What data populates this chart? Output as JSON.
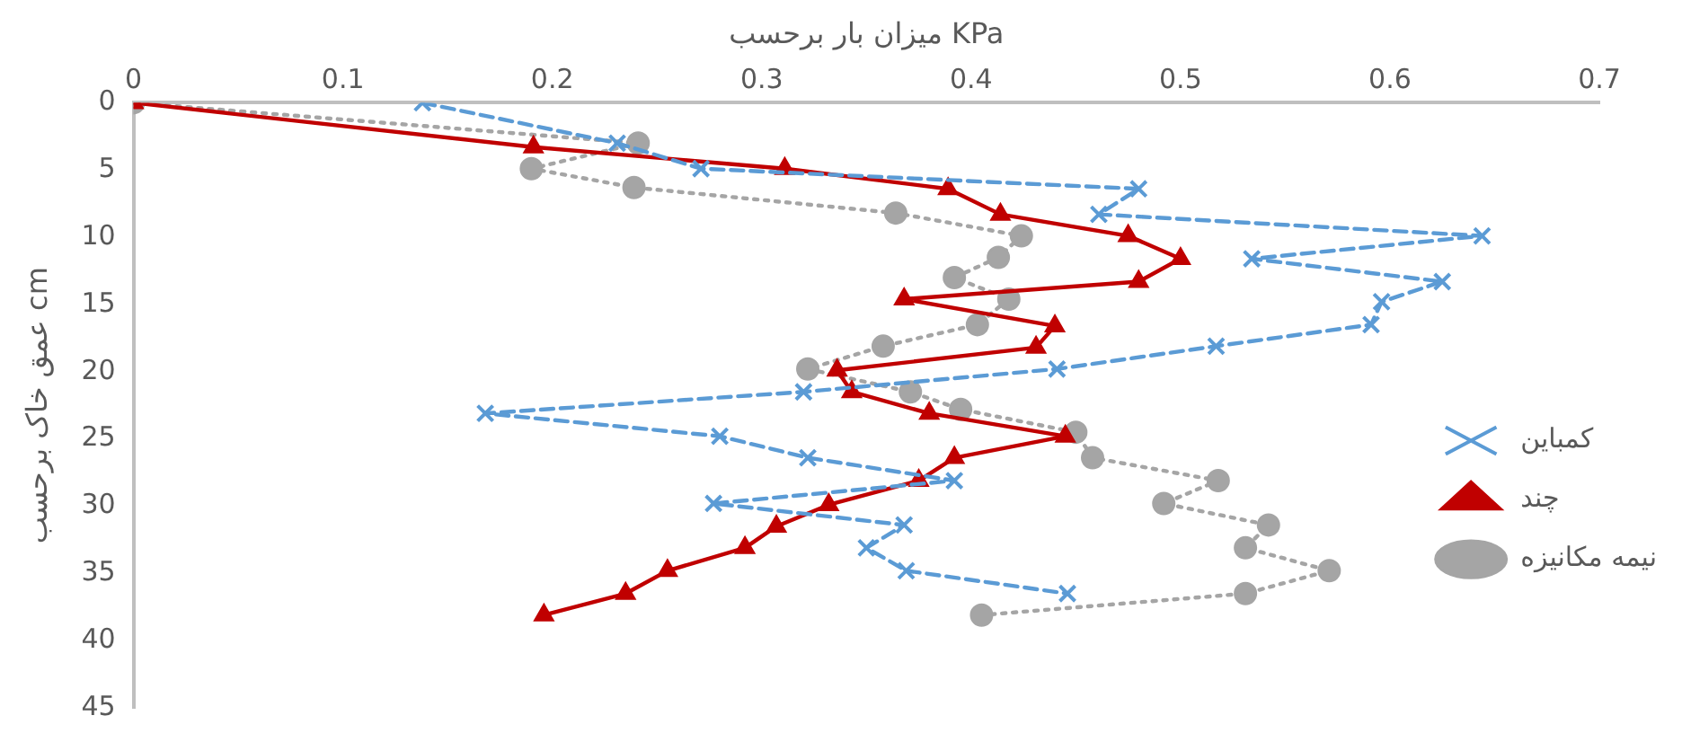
{
  "chart_data": {
    "type": "line",
    "xlabel": "میزان بار برحسب KPa",
    "ylabel": "عمق خاک برحسب cm",
    "xlim": [
      0,
      0.7
    ],
    "xticks": [
      0,
      0.1,
      0.2,
      0.3,
      0.4,
      0.5,
      0.6,
      0.7
    ],
    "ylim": [
      45,
      0
    ],
    "yticks": [
      0,
      5,
      10,
      15,
      20,
      25,
      30,
      35,
      40,
      45
    ],
    "grid": false,
    "legend": "right",
    "series": [
      {
        "name": "نیمه مکانیزه",
        "color": "#a5a5a5",
        "marker": "circle",
        "line_style": "dotted",
        "x": [
          0,
          0.241,
          0.19,
          0.239,
          0.364,
          0.424,
          0.413,
          0.392,
          0.418,
          0.403,
          0.358,
          0.322,
          0.371,
          0.395,
          0.45,
          0.458,
          0.518,
          0.492,
          0.542,
          0.531,
          0.571,
          0.531,
          0.405
        ],
        "values": [
          0,
          3,
          4.9,
          6.3,
          8.2,
          9.9,
          11.5,
          13,
          14.6,
          16.5,
          18.1,
          19.8,
          21.5,
          22.8,
          24.5,
          26.4,
          28.1,
          29.8,
          31.4,
          33.1,
          34.8,
          36.5,
          38.1
        ]
      },
      {
        "name": "چند",
        "color": "#c00000",
        "marker": "triangle",
        "line_style": "solid",
        "x": [
          0,
          0.191,
          0.311,
          0.389,
          0.414,
          0.475,
          0.5,
          0.48,
          0.368,
          0.44,
          0.431,
          0.336,
          0.343,
          0.38,
          0.445,
          0.392,
          0.375,
          0.332,
          0.307,
          0.292,
          0.255,
          0.235,
          0.196
        ],
        "values": [
          0,
          3.3,
          4.9,
          6.4,
          8.3,
          9.9,
          11.6,
          13.3,
          14.6,
          16.6,
          18.2,
          19.9,
          21.5,
          23.1,
          24.8,
          26.4,
          28.1,
          29.9,
          31.5,
          33.1,
          34.8,
          36.5,
          38.1
        ]
      },
      {
        "name": "کمباین",
        "color": "#5b9bd5",
        "marker": "cross",
        "line_style": "dashed",
        "x": [
          0.138,
          0.231,
          0.271,
          0.48,
          0.461,
          0.644,
          0.534,
          0.625,
          0.596,
          0.591,
          0.517,
          0.441,
          0.32,
          0.168,
          0.28,
          0.322,
          0.392,
          0.277,
          0.368,
          0.35,
          0.369,
          0.446
        ],
        "values": [
          0,
          3,
          4.9,
          6.4,
          8.3,
          9.9,
          11.6,
          13.3,
          14.8,
          16.5,
          18.1,
          19.8,
          21.5,
          23.1,
          24.8,
          26.4,
          28.1,
          29.8,
          31.4,
          33.1,
          34.8,
          36.5
        ]
      }
    ]
  }
}
